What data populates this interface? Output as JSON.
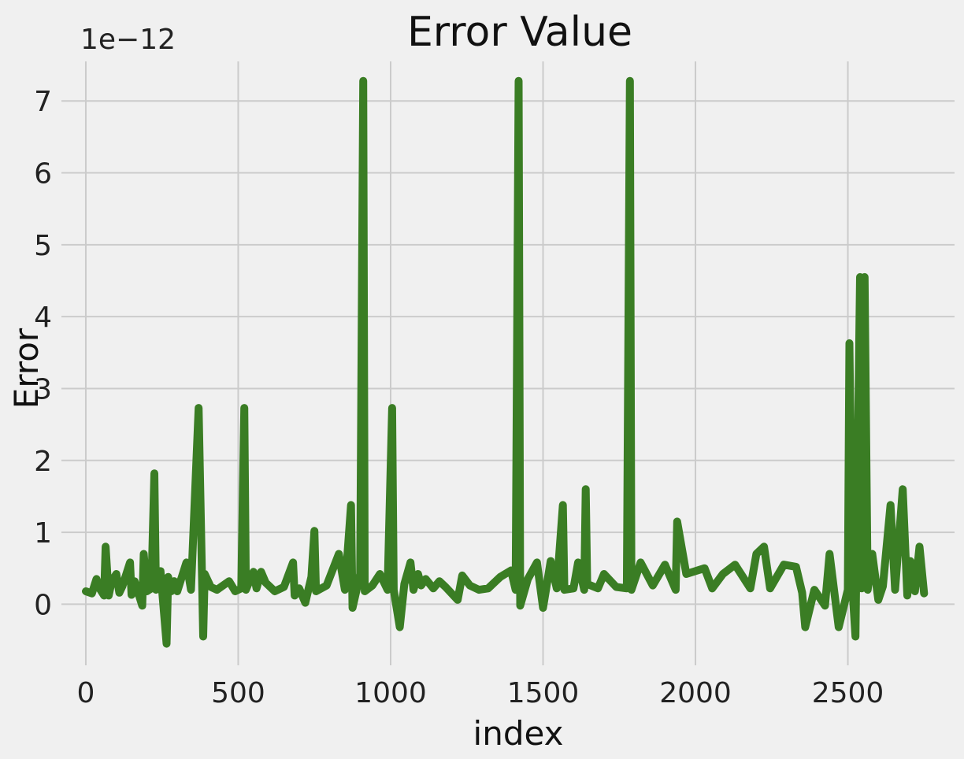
{
  "chart_data": {
    "type": "line",
    "title": "Error Value",
    "xlabel": "index",
    "ylabel": "Error",
    "y_offset_label": "1e−12",
    "x_ticks": [
      0,
      500,
      1000,
      1500,
      2000,
      2500
    ],
    "y_ticks": [
      0,
      1,
      2,
      3,
      4,
      5,
      6,
      7
    ],
    "xlim": [
      -80,
      2850
    ],
    "ylim": [
      -0.85,
      7.55
    ],
    "grid": true,
    "series": [
      {
        "color": "#3a7d24",
        "x": [
          0,
          20,
          35,
          45,
          60,
          65,
          75,
          85,
          100,
          110,
          120,
          145,
          150,
          160,
          185,
          190,
          200,
          215,
          225,
          230,
          245,
          265,
          270,
          280,
          290,
          300,
          330,
          345,
          370,
          385,
          390,
          410,
          430,
          470,
          490,
          510,
          520,
          525,
          550,
          560,
          575,
          590,
          620,
          650,
          680,
          685,
          700,
          720,
          740,
          750,
          755,
          790,
          830,
          850,
          870,
          875,
          900,
          910,
          915,
          940,
          965,
          990,
          1005,
          1010,
          1030,
          1045,
          1065,
          1075,
          1090,
          1100,
          1115,
          1140,
          1160,
          1180,
          1220,
          1235,
          1260,
          1290,
          1320,
          1360,
          1395,
          1410,
          1420,
          1425,
          1450,
          1480,
          1500,
          1525,
          1545,
          1565,
          1570,
          1600,
          1615,
          1635,
          1640,
          1645,
          1680,
          1700,
          1740,
          1775,
          1785,
          1790,
          1820,
          1860,
          1900,
          1935,
          1940,
          1970,
          2030,
          2055,
          2090,
          2130,
          2180,
          2200,
          2225,
          2245,
          2290,
          2330,
          2350,
          2360,
          2390,
          2425,
          2440,
          2470,
          2500,
          2505,
          2515,
          2525,
          2540,
          2545,
          2555,
          2565,
          2580,
          2600,
          2615,
          2640,
          2655,
          2680,
          2695,
          2705,
          2720,
          2735,
          2750
        ],
        "y": [
          0.18,
          0.15,
          0.35,
          0.22,
          0.12,
          0.8,
          0.12,
          0.32,
          0.42,
          0.16,
          0.25,
          0.58,
          0.13,
          0.32,
          -0.02,
          0.7,
          0.18,
          0.22,
          1.82,
          0.2,
          0.46,
          -0.55,
          0.38,
          0.18,
          0.32,
          0.18,
          0.58,
          0.2,
          2.73,
          -0.45,
          0.42,
          0.24,
          0.2,
          0.32,
          0.18,
          0.22,
          2.73,
          0.2,
          0.45,
          0.22,
          0.45,
          0.3,
          0.18,
          0.24,
          0.58,
          0.12,
          0.22,
          0.02,
          0.38,
          1.02,
          0.18,
          0.26,
          0.7,
          0.2,
          1.38,
          -0.05,
          0.42,
          7.28,
          0.18,
          0.26,
          0.42,
          0.2,
          2.73,
          0.2,
          -0.32,
          0.28,
          0.58,
          0.2,
          0.42,
          0.26,
          0.35,
          0.22,
          0.32,
          0.24,
          0.06,
          0.4,
          0.26,
          0.2,
          0.22,
          0.38,
          0.47,
          0.2,
          7.28,
          -0.02,
          0.35,
          0.58,
          -0.05,
          0.6,
          0.22,
          1.38,
          0.2,
          0.22,
          0.58,
          0.2,
          1.6,
          0.28,
          0.22,
          0.42,
          0.24,
          0.22,
          7.28,
          0.2,
          0.58,
          0.26,
          0.55,
          0.2,
          1.15,
          0.42,
          0.5,
          0.22,
          0.42,
          0.55,
          0.22,
          0.7,
          0.8,
          0.22,
          0.55,
          0.52,
          0.16,
          -0.32,
          0.2,
          -0.02,
          0.7,
          -0.32,
          0.2,
          3.63,
          0.22,
          -0.45,
          4.55,
          0.22,
          4.55,
          0.2,
          0.7,
          0.06,
          0.25,
          1.38,
          0.2,
          1.6,
          0.12,
          0.6,
          0.18,
          0.8,
          0.15
        ]
      }
    ]
  }
}
